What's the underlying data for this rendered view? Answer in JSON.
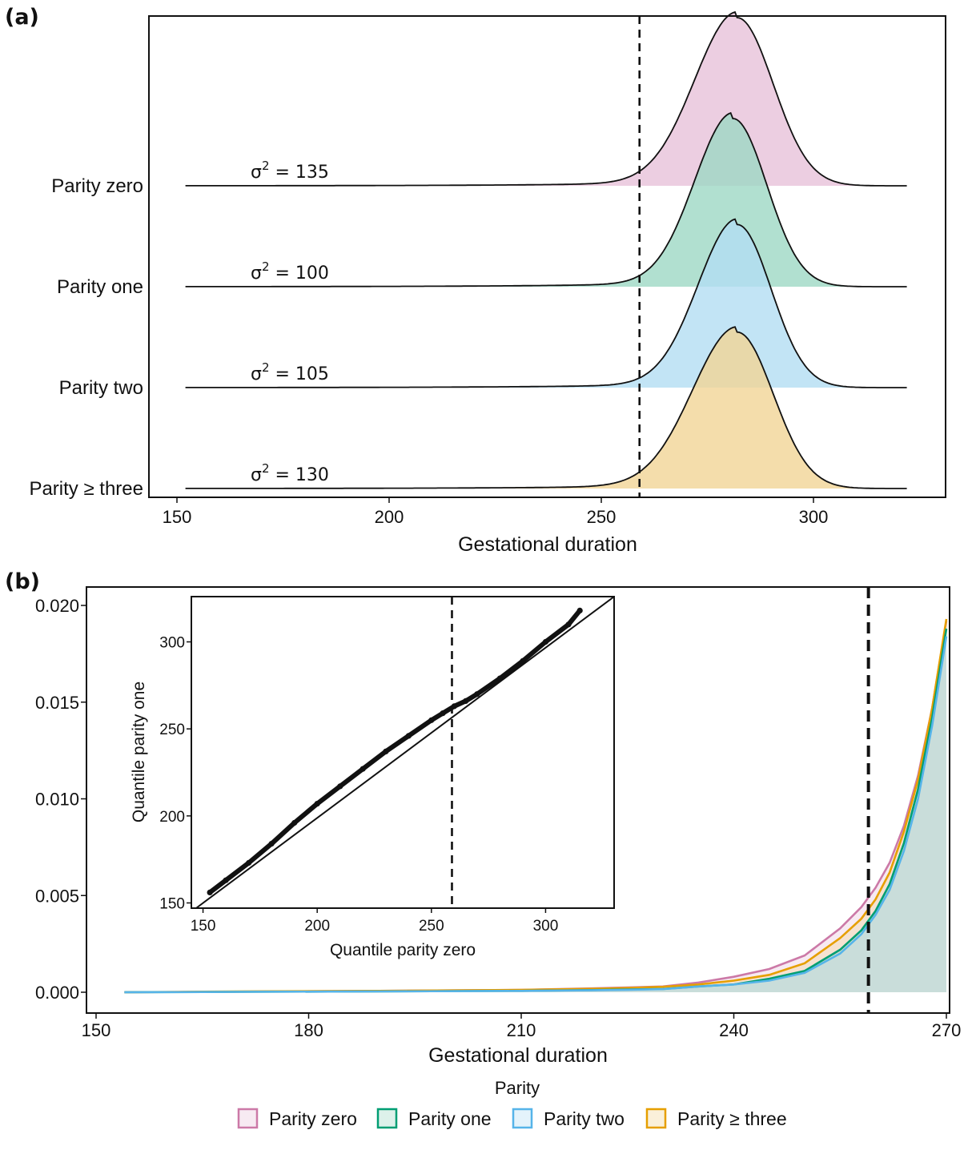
{
  "panels": {
    "a_label": "(a)",
    "b_label": "(b)"
  },
  "colors": {
    "parity_zero_fill": "#E7C2DA",
    "parity_one_fill": "#9ED8C4",
    "parity_two_fill": "#B3DDF3",
    "parity_three_fill": "#F1D596",
    "parity_zero_line": "#CC79A7",
    "parity_one_line": "#009E73",
    "parity_two_line": "#56B4E9",
    "parity_three_line": "#E69F00",
    "shared_area_fill": "#D4DBCC"
  },
  "chart_data": [
    {
      "type": "area",
      "panel": "(a)",
      "subtype": "ridgeline-density",
      "xlabel": "Gestational duration",
      "ylabel": "",
      "xlim": [
        147,
        325
      ],
      "xticks": [
        150,
        200,
        250,
        300
      ],
      "reference_line_x": 259,
      "series": [
        {
          "name": "Parity zero",
          "label": "Parity zero",
          "variance": 135,
          "sigma_prefix": "σ",
          "sigma_sup": "2",
          "sigma_rest": " =  135",
          "mean": 282,
          "sd_left": 10,
          "sd_right": 8.5,
          "peak_height": 1.0
        },
        {
          "name": "Parity one",
          "label": "Parity one",
          "variance": 100,
          "sigma_prefix": "σ",
          "sigma_sup": "2",
          "sigma_rest": " =  100",
          "mean": 281,
          "sd_left": 9,
          "sd_right": 8,
          "peak_height": 1.0
        },
        {
          "name": "Parity two",
          "label": "Parity two",
          "variance": 105,
          "sigma_prefix": "σ",
          "sigma_sup": "2",
          "sigma_rest": " =  105",
          "mean": 282,
          "sd_left": 9.2,
          "sd_right": 8,
          "peak_height": 0.97
        },
        {
          "name": "Parity ≥ three",
          "label": "Parity ≥ three",
          "variance": 130,
          "sigma_prefix": "σ",
          "sigma_sup": "2",
          "sigma_rest": " =  130",
          "mean": 282,
          "sd_left": 10.5,
          "sd_right": 8.5,
          "peak_height": 0.93
        }
      ]
    },
    {
      "type": "area",
      "panel": "(b)",
      "xlabel": "Gestational duration",
      "ylabel": "",
      "xlim": [
        150,
        270
      ],
      "ylim": [
        -0.001,
        0.0202
      ],
      "xticks": [
        150,
        180,
        210,
        240,
        270
      ],
      "yticks": [
        "0.000",
        "0.005",
        "0.010",
        "0.015",
        "0.020"
      ],
      "ytick_values": [
        0.0,
        0.005,
        0.01,
        0.015,
        0.02
      ],
      "reference_line_x": 259,
      "x": [
        154,
        170,
        190,
        210,
        220,
        225,
        230,
        235,
        240,
        245,
        250,
        255,
        258,
        260,
        262,
        264,
        266,
        268,
        270
      ],
      "series": [
        {
          "name": "Parity zero",
          "values": [
            0.0,
            3e-05,
            7e-05,
            0.00012,
            0.0002,
            0.00025,
            0.0003,
            0.0005,
            0.0008,
            0.0012,
            0.0019,
            0.0033,
            0.0044,
            0.0054,
            0.0067,
            0.0086,
            0.0112,
            0.0147,
            0.0192
          ]
        },
        {
          "name": "Parity one",
          "values": [
            0.0,
            2e-05,
            4e-05,
            7e-05,
            0.00011,
            0.00014,
            0.00017,
            0.0003,
            0.0004,
            0.0007,
            0.0011,
            0.0022,
            0.0032,
            0.0042,
            0.0056,
            0.0077,
            0.0105,
            0.0142,
            0.0188
          ]
        },
        {
          "name": "Parity two",
          "values": [
            0.0,
            2e-05,
            4e-05,
            7e-05,
            0.0001,
            0.00013,
            0.00016,
            0.0003,
            0.0004,
            0.0006,
            0.001,
            0.002,
            0.003,
            0.004,
            0.0053,
            0.0073,
            0.01,
            0.0138,
            0.0184
          ]
        },
        {
          "name": "Parity ≥ three",
          "values": [
            0.0,
            4e-05,
            7e-05,
            0.00012,
            0.00018,
            0.00022,
            0.00028,
            0.0004,
            0.0006,
            0.0009,
            0.0015,
            0.0028,
            0.0038,
            0.0048,
            0.0062,
            0.0083,
            0.011,
            0.0147,
            0.0193
          ]
        }
      ]
    },
    {
      "type": "scatter",
      "panel": "(b) inset",
      "xlabel": "Quantile parity zero",
      "ylabel": "Quantile parity one",
      "xlim": [
        147,
        330
      ],
      "ylim": [
        147,
        326
      ],
      "xticks": [
        150,
        200,
        250,
        300
      ],
      "yticks": [
        150,
        200,
        250,
        300
      ],
      "reference_line_x": 259,
      "identity_line": true,
      "x": [
        153,
        160,
        170,
        180,
        190,
        200,
        210,
        220,
        230,
        240,
        250,
        255,
        260,
        265,
        270,
        280,
        290,
        300,
        310,
        315
      ],
      "y": [
        156,
        163,
        173,
        184,
        196,
        207,
        217,
        227,
        237,
        246,
        255,
        259,
        263,
        266,
        270,
        279,
        289,
        300,
        310,
        318
      ]
    }
  ],
  "legend": {
    "title": "Parity",
    "items": [
      {
        "label": "Parity zero"
      },
      {
        "label": "Parity one"
      },
      {
        "label": "Parity two"
      },
      {
        "label": "Parity ≥ three"
      }
    ]
  }
}
